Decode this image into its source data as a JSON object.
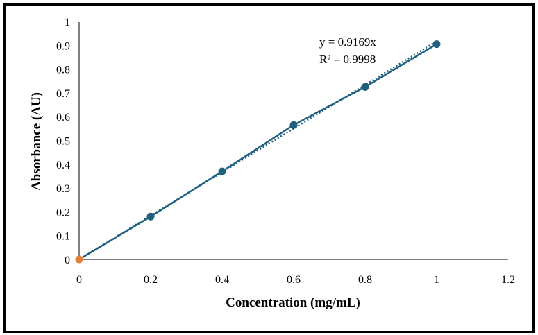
{
  "chart_data": {
    "type": "scatter",
    "title": "",
    "xlabel": "Concentration (mg/mL)",
    "ylabel": "Absorbance (AU)",
    "xlim": [
      0,
      1.2
    ],
    "ylim": [
      0,
      1
    ],
    "x_ticks": [
      "0",
      "0.2",
      "0.4",
      "0.6",
      "0.8",
      "1",
      "1.2"
    ],
    "y_ticks": [
      "0",
      "0.1",
      "0.2",
      "0.3",
      "0.4",
      "0.5",
      "0.6",
      "0.7",
      "0.8",
      "0.9",
      "1"
    ],
    "grid": false,
    "series": [
      {
        "x": [
          0,
          0.2,
          0.4,
          0.6,
          0.8,
          1.0
        ],
        "y": [
          0,
          0.18,
          0.37,
          0.565,
          0.725,
          0.905
        ],
        "color": "#1f5f7f",
        "first_point_color": "#e0803a",
        "connected": true
      }
    ],
    "trendline": {
      "style": "dotted",
      "slope": 0.9169,
      "x_range": [
        0,
        1.0
      ],
      "color": "#1f5f7f",
      "equation_label": "y = 0.9169x",
      "r2_label": "R² = 0.9998"
    }
  }
}
